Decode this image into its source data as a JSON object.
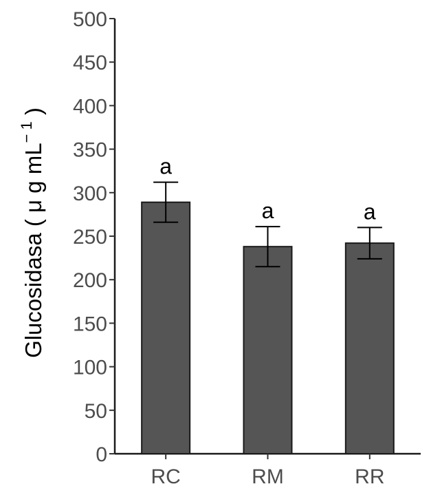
{
  "chart_data": {
    "type": "bar",
    "title": "",
    "xlabel": "",
    "ylabel": "Glucosidasa ( μ g  mL",
    "ylabel_superscript": "− 1",
    "ylabel_suffix": " )",
    "categories": [
      "RC",
      "RM",
      "RR"
    ],
    "values": [
      289,
      238,
      242
    ],
    "error": [
      23,
      23,
      18
    ],
    "significance_labels": [
      "a",
      "a",
      "a"
    ],
    "ylim": [
      0,
      500
    ],
    "yticks": [
      0,
      50,
      100,
      150,
      200,
      250,
      300,
      350,
      400,
      450,
      500
    ],
    "ytick_labels": [
      "0",
      "50",
      "100",
      "150",
      "200",
      "250",
      "300",
      "350",
      "400",
      "450",
      "500"
    ],
    "grid": false,
    "legend": "none",
    "bar_color": "#555555",
    "bar_edge_color": "#1a1a1a",
    "tick_label_color": "#4d4d4d"
  }
}
